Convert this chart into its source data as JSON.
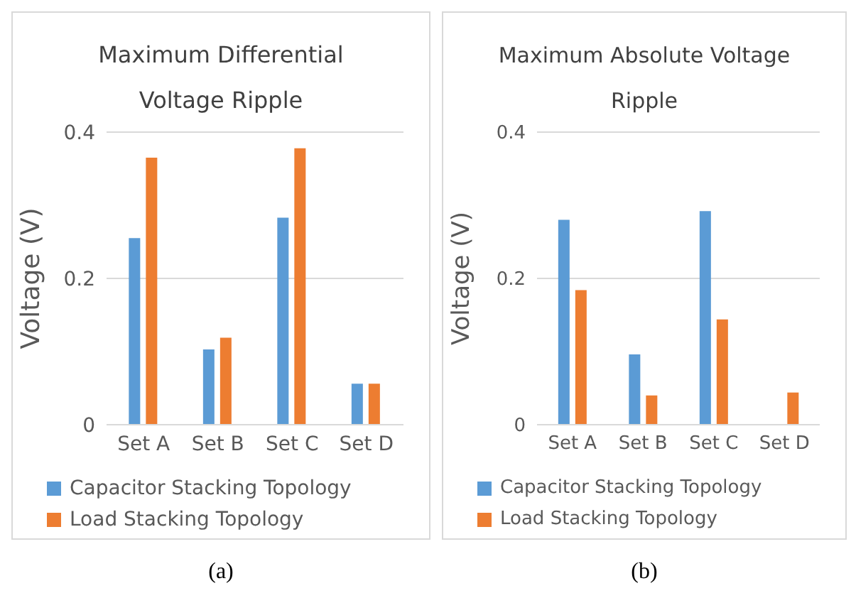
{
  "chart_data": [
    {
      "type": "bar",
      "title": "Maximum Differential Voltage Ripple",
      "ylabel": "Voltage (V)",
      "categories": [
        "Set A",
        "Set B",
        "Set C",
        "Set D"
      ],
      "series": [
        {
          "name": "Capacitor Stacking Topology",
          "color": "#5b9bd5",
          "values": [
            0.255,
            0.103,
            0.283,
            0.056
          ]
        },
        {
          "name": "Load Stacking Topology",
          "color": "#ed7d31",
          "values": [
            0.365,
            0.119,
            0.378,
            0.056
          ]
        }
      ],
      "ylim": [
        0,
        0.4
      ],
      "yticks": [
        0,
        0.2,
        0.4
      ],
      "grid": "y",
      "legend": "bottom",
      "annotations": [
        "(a)"
      ]
    },
    {
      "type": "bar",
      "title": "Maximum Absolute Voltage Ripple",
      "ylabel": "Voltage (V)",
      "categories": [
        "Set A",
        "Set B",
        "Set C",
        "Set D"
      ],
      "series": [
        {
          "name": "Capacitor Stacking Topology",
          "color": "#5b9bd5",
          "values": [
            0.28,
            0.096,
            0.292,
            null
          ]
        },
        {
          "name": "Load Stacking Topology",
          "color": "#ed7d31",
          "values": [
            0.184,
            0.04,
            0.144,
            0.044
          ]
        }
      ],
      "ylim": [
        0,
        0.4
      ],
      "yticks": [
        0,
        0.2,
        0.4
      ],
      "grid": "y",
      "legend": "bottom",
      "annotations": [
        "(b)"
      ]
    }
  ]
}
